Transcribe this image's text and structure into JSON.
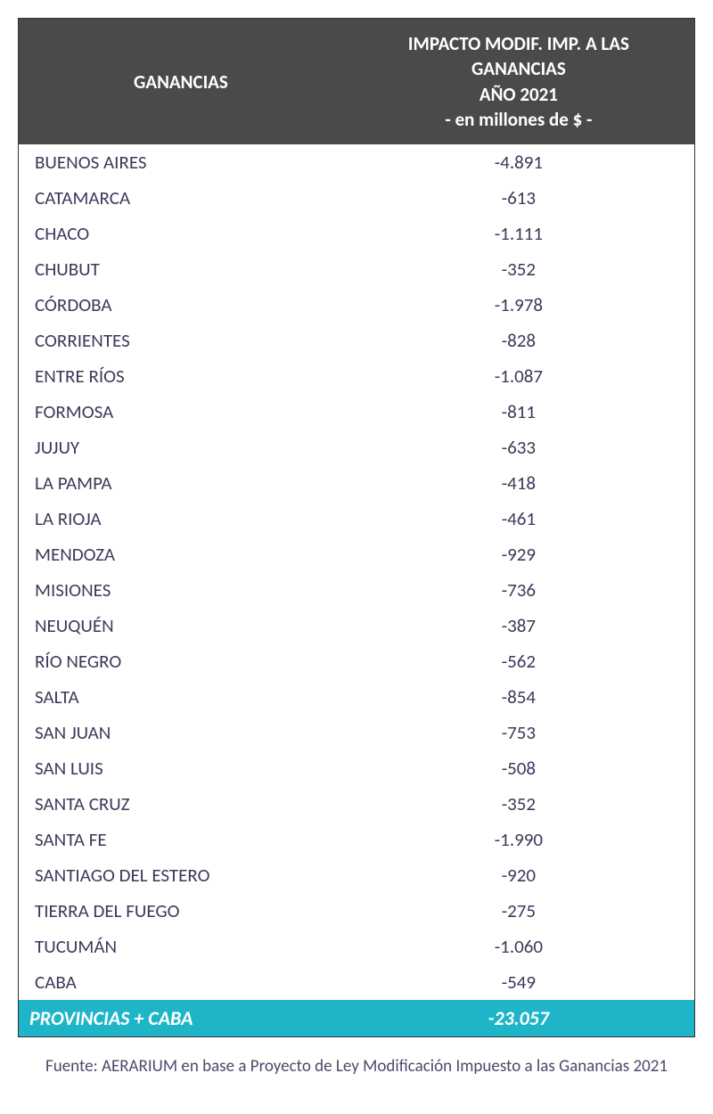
{
  "table": {
    "header": {
      "col1": "GANANCIAS",
      "col2_line1": "IMPACTO MODIF. IMP. A LAS",
      "col2_line2": "GANANCIAS",
      "col2_line3": "AÑO 2021",
      "col2_line4": "- en millones de $ -"
    },
    "header_bg": "#4a4a4a",
    "header_fg": "#ffffff",
    "row_fg": "#3a3a5a",
    "row_bg": "#ffffff",
    "rows": [
      {
        "province": "BUENOS AIRES",
        "value": "-4.891"
      },
      {
        "province": "CATAMARCA",
        "value": "-613"
      },
      {
        "province": "CHACO",
        "value": "-1.111"
      },
      {
        "province": "CHUBUT",
        "value": "-352"
      },
      {
        "province": "CÓRDOBA",
        "value": "-1.978"
      },
      {
        "province": "CORRIENTES",
        "value": "-828"
      },
      {
        "province": "ENTRE RÍOS",
        "value": "-1.087"
      },
      {
        "province": "FORMOSA",
        "value": "-811"
      },
      {
        "province": "JUJUY",
        "value": "-633"
      },
      {
        "province": "LA PAMPA",
        "value": "-418"
      },
      {
        "province": "LA RIOJA",
        "value": "-461"
      },
      {
        "province": "MENDOZA",
        "value": "-929"
      },
      {
        "province": "MISIONES",
        "value": "-736"
      },
      {
        "province": "NEUQUÉN",
        "value": "-387"
      },
      {
        "province": "RÍO NEGRO",
        "value": "-562"
      },
      {
        "province": "SALTA",
        "value": "-854"
      },
      {
        "province": "SAN JUAN",
        "value": "-753"
      },
      {
        "province": "SAN LUIS",
        "value": "-508"
      },
      {
        "province": "SANTA CRUZ",
        "value": "-352"
      },
      {
        "province": "SANTA FE",
        "value": "-1.990"
      },
      {
        "province": "SANTIAGO DEL ESTERO",
        "value": "-920"
      },
      {
        "province": "TIERRA DEL FUEGO",
        "value": "-275"
      },
      {
        "province": "TUCUMÁN",
        "value": "-1.060"
      },
      {
        "province": "CABA",
        "value": "-549"
      }
    ],
    "total": {
      "label": "PROVINCIAS + CABA",
      "value": "-23.057",
      "bg": "#1fb5c9",
      "fg": "#ffffff"
    }
  },
  "footer": {
    "text": "Fuente: AERARIUM en base a Proyecto de Ley Modificación Impuesto a las Ganancias 2021"
  }
}
